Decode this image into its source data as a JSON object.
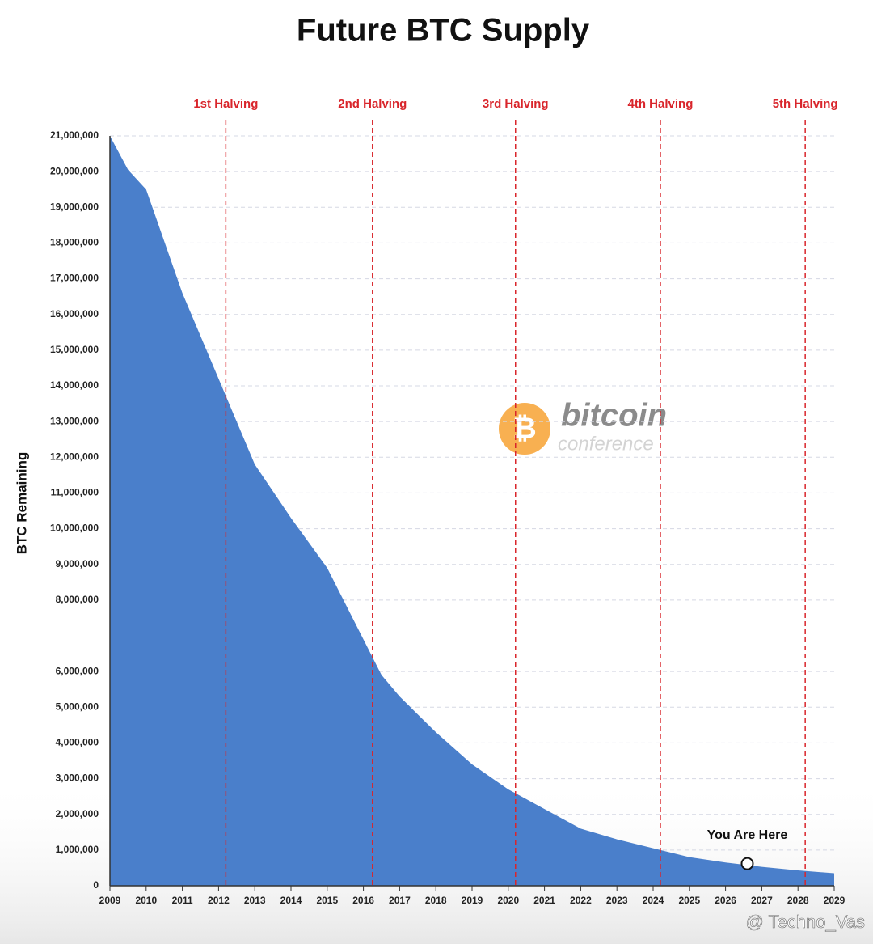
{
  "chart_data": {
    "type": "area",
    "title": "Future BTC Supply",
    "ylabel": "BTC Remaining",
    "x": [
      2009,
      2009.5,
      2010,
      2011,
      2012,
      2013,
      2014,
      2015,
      2016,
      2016.5,
      2017,
      2018,
      2019,
      2020,
      2021,
      2022,
      2023,
      2024,
      2025,
      2026,
      2027,
      2028,
      2029
    ],
    "values": [
      21000000,
      20050000,
      19500000,
      16600000,
      14200000,
      11800000,
      10300000,
      8900000,
      6900000,
      5900000,
      5300000,
      4300000,
      3400000,
      2700000,
      2150000,
      1600000,
      1300000,
      1050000,
      800000,
      650000,
      530000,
      430000,
      350000
    ],
    "color": "#4a7fcb",
    "xlim": [
      2009,
      2029
    ],
    "xticks": [
      2009,
      2010,
      2011,
      2012,
      2013,
      2014,
      2015,
      2016,
      2017,
      2018,
      2019,
      2020,
      2021,
      2022,
      2023,
      2024,
      2025,
      2026,
      2027,
      2028,
      2029
    ],
    "ylim": [
      0,
      21000000
    ],
    "yticks": [
      {
        "value": 0,
        "label": "0"
      },
      {
        "value": 1000000,
        "label": "1,000,000"
      },
      {
        "value": 2000000,
        "label": "2,000,000"
      },
      {
        "value": 3000000,
        "label": "3,000,000"
      },
      {
        "value": 4000000,
        "label": "4,000,000"
      },
      {
        "value": 5000000,
        "label": "5,000,000"
      },
      {
        "value": 6000000,
        "label": "6,000,000"
      },
      {
        "value": 8000000,
        "label": "8,000,000"
      },
      {
        "value": 9000000,
        "label": "9,000,000"
      },
      {
        "value": 10000000,
        "label": "10,000,000"
      },
      {
        "value": 11000000,
        "label": "11,000,000"
      },
      {
        "value": 12000000,
        "label": "12,000,000"
      },
      {
        "value": 13000000,
        "label": "13,000,000"
      },
      {
        "value": 14000000,
        "label": "14,000,000"
      },
      {
        "value": 15000000,
        "label": "15,000,000"
      },
      {
        "value": 16000000,
        "label": "16,000,000"
      },
      {
        "value": 17000000,
        "label": "17,000,000"
      },
      {
        "value": 18000000,
        "label": "18,000,000"
      },
      {
        "value": 19000000,
        "label": "19,000,000"
      },
      {
        "value": 20000000,
        "label": "20,000,000"
      },
      {
        "value": 21000000,
        "label": "21,000,000"
      }
    ],
    "grid": true,
    "halvings": [
      {
        "label": "1st Halving",
        "x": 2012.2
      },
      {
        "label": "2nd Halving",
        "x": 2016.25
      },
      {
        "label": "3rd Halving",
        "x": 2020.2
      },
      {
        "label": "4th Halving",
        "x": 2024.2
      },
      {
        "label": "5th Halving",
        "x": 2028.2
      }
    ],
    "halving_color": "#d9252b",
    "marker": {
      "label": "You Are Here",
      "x": 2026.6,
      "value": 620000
    },
    "watermark": {
      "logo": "bitcoin",
      "sub": "conference",
      "credit": "@ Techno_Vas"
    }
  }
}
